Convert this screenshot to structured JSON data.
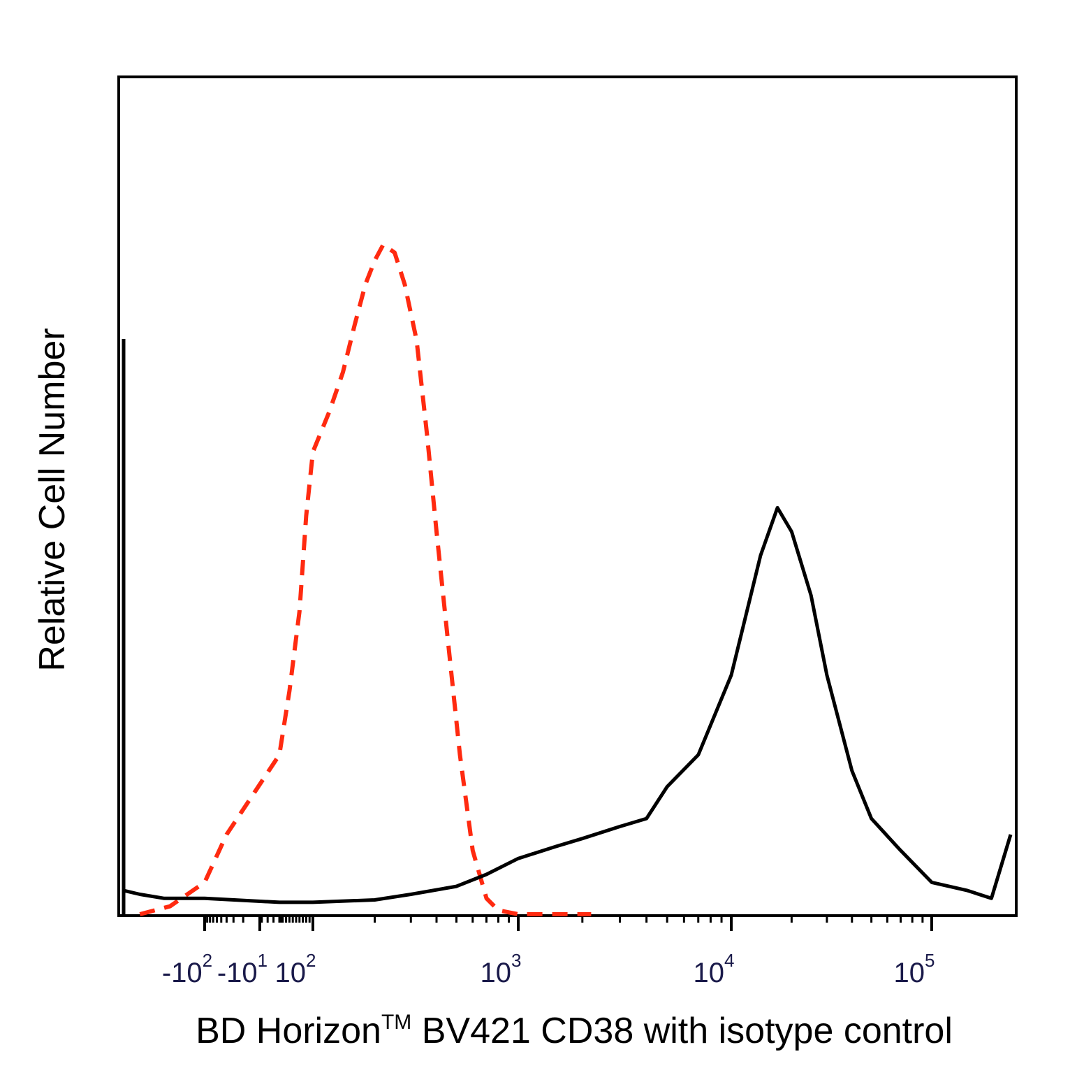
{
  "chart_data": {
    "type": "line",
    "title": "",
    "xlabel": "BD Horizon",
    "xlabel_sup": "TM",
    "xlabel_rest": " BV421 CD38 with isotype control",
    "ylabel": "Relative Cell Number",
    "x_scale": "biexponential (logicle)",
    "grid": false,
    "legend": "none",
    "tick_labels": [
      {
        "base": "-10",
        "exp": "2",
        "value": -100
      },
      {
        "base": "-10",
        "exp": "1",
        "value": -10
      },
      {
        "base": "10",
        "exp": "2",
        "value": 100
      },
      {
        "base": "10",
        "exp": "3",
        "value": 1000
      },
      {
        "base": "10",
        "exp": "4",
        "value": 10000
      },
      {
        "base": "10",
        "exp": "5",
        "value": 100000
      }
    ],
    "series": [
      {
        "color": "#ff2a10",
        "style": "dashed",
        "x": [
          -300,
          -180,
          -100,
          -40,
          0,
          30,
          60,
          80,
          100,
          120,
          140,
          160,
          180,
          200,
          220,
          250,
          280,
          320,
          360,
          400,
          460,
          520,
          600,
          700,
          800,
          1000,
          1500,
          2200
        ],
        "y": [
          0,
          1,
          4,
          10,
          20,
          28,
          38,
          50,
          58,
          63,
          68,
          74,
          79,
          82,
          84,
          83,
          79,
          72,
          60,
          48,
          33,
          20,
          8,
          2,
          0.5,
          0,
          0,
          0
        ]
      },
      {
        "color": "#000000",
        "style": "solid",
        "x": [
          -400,
          -300,
          -200,
          -100,
          0,
          100,
          200,
          300,
          500,
          700,
          1000,
          1500,
          2000,
          3000,
          4000,
          5000,
          7000,
          10000,
          14000,
          17000,
          20000,
          25000,
          30000,
          40000,
          50000,
          70000,
          100000,
          150000,
          200000,
          250000
        ],
        "y": [
          3,
          2.5,
          2,
          2,
          1.5,
          1.5,
          1.8,
          2.5,
          3.5,
          5,
          7,
          8.5,
          9.5,
          11,
          12,
          16,
          20,
          30,
          45,
          51,
          48,
          40,
          30,
          18,
          12,
          8,
          4,
          3,
          2,
          10
        ]
      }
    ]
  }
}
